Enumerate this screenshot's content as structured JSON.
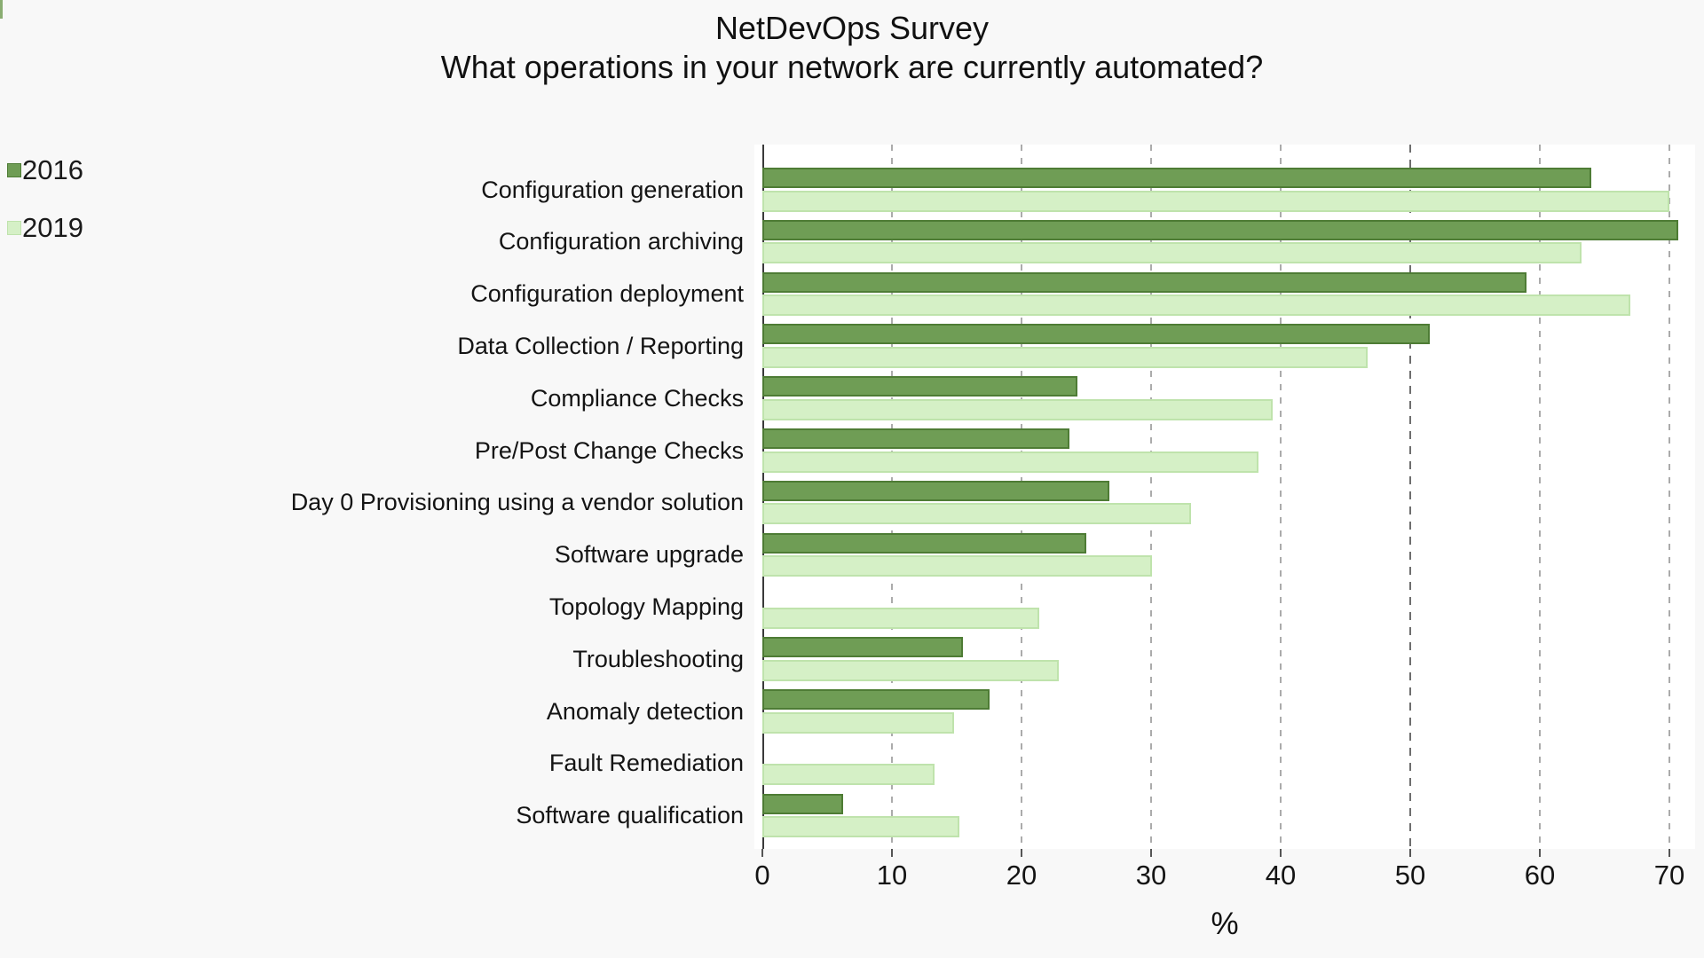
{
  "page": {
    "background": "#f8f8f8",
    "accent_sliver_color": "#8aad72"
  },
  "title": {
    "line1": "NetDevOps Survey",
    "line2": "What operations in your network are currently automated?"
  },
  "legend": {
    "position": "top-left",
    "items": [
      {
        "label": "2016",
        "color": "#6f9d55",
        "border": "#4e7c35"
      },
      {
        "label": "2019",
        "color": "#d5f0c6",
        "border": "#bfe3ac"
      }
    ]
  },
  "chart_data": {
    "type": "bar",
    "orientation": "horizontal",
    "title": "NetDevOps Survey",
    "subtitle": "What operations in your network are currently automated?",
    "xlabel": "%",
    "ylabel": "",
    "xlim": [
      0,
      70
    ],
    "xticks": [
      0,
      10,
      20,
      30,
      40,
      50,
      60,
      70
    ],
    "grid": "vertical-dashed",
    "legend_position": "top-left",
    "categories": [
      "Configuration generation",
      "Configuration archiving",
      "Configuration deployment",
      "Data Collection / Reporting",
      "Compliance Checks",
      "Pre/Post Change Checks",
      "Day 0 Provisioning using a vendor solution",
      "Software upgrade",
      "Topology Mapping",
      "Troubleshooting",
      "Anomaly detection",
      "Fault Remediation",
      "Software qualification"
    ],
    "series": [
      {
        "name": "2016",
        "color": "#6f9d55",
        "border_color": "#4e7c35",
        "values": [
          64,
          70.7,
          59,
          51.5,
          24.3,
          23.7,
          26.8,
          25,
          0,
          15.5,
          17.5,
          0,
          6.2
        ]
      },
      {
        "name": "2019",
        "color": "#d5f0c6",
        "border_color": "#bfe3ac",
        "values": [
          70,
          63.2,
          67,
          46.7,
          39.4,
          38.3,
          33.1,
          30.1,
          21.4,
          22.9,
          14.8,
          13.3,
          15.2
        ]
      }
    ]
  }
}
